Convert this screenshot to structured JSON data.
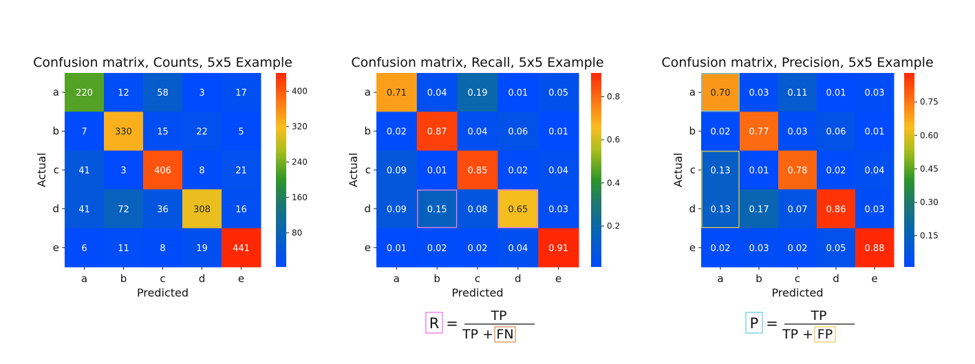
{
  "chart_data": [
    {
      "type": "heatmap",
      "title": "Confusion matrix, Counts, 5x5 Example",
      "xlabel": "Predicted",
      "ylabel": "Actual",
      "x_categories": [
        "a",
        "b",
        "c",
        "d",
        "e"
      ],
      "y_categories": [
        "a",
        "b",
        "c",
        "d",
        "e"
      ],
      "values": [
        [
          220,
          12,
          58,
          3,
          17
        ],
        [
          7,
          330,
          15,
          22,
          5
        ],
        [
          41,
          3,
          406,
          8,
          21
        ],
        [
          41,
          72,
          36,
          308,
          16
        ],
        [
          6,
          11,
          8,
          19,
          441
        ]
      ],
      "labels": [
        [
          "220",
          "12",
          "58",
          "3",
          "17"
        ],
        [
          "7",
          "330",
          "15",
          "22",
          "5"
        ],
        [
          "41",
          "3",
          "406",
          "8",
          "21"
        ],
        [
          "41",
          "72",
          "36",
          "308",
          "16"
        ],
        [
          "6",
          "11",
          "8",
          "19",
          "441"
        ]
      ],
      "colorbar": {
        "min": 3,
        "max": 441,
        "ticks": [
          80,
          160,
          240,
          320,
          400
        ],
        "tick_labels": [
          "80",
          "160",
          "240",
          "320",
          "400"
        ]
      },
      "highlights": []
    },
    {
      "type": "heatmap",
      "title": "Confusion matrix, Recall, 5x5 Example",
      "xlabel": "Predicted",
      "ylabel": "Actual",
      "x_categories": [
        "a",
        "b",
        "c",
        "d",
        "e"
      ],
      "y_categories": [
        "a",
        "b",
        "c",
        "d",
        "e"
      ],
      "values": [
        [
          0.71,
          0.04,
          0.19,
          0.01,
          0.05
        ],
        [
          0.02,
          0.87,
          0.04,
          0.06,
          0.01
        ],
        [
          0.09,
          0.01,
          0.85,
          0.02,
          0.04
        ],
        [
          0.09,
          0.15,
          0.08,
          0.65,
          0.03
        ],
        [
          0.01,
          0.02,
          0.02,
          0.04,
          0.91
        ]
      ],
      "labels": [
        [
          "0.71",
          "0.04",
          "0.19",
          "0.01",
          "0.05"
        ],
        [
          "0.02",
          "0.87",
          "0.04",
          "0.06",
          "0.01"
        ],
        [
          "0.09",
          "0.01",
          "0.85",
          "0.02",
          "0.04"
        ],
        [
          "0.09",
          "0.15",
          "0.08",
          "0.65",
          "0.03"
        ],
        [
          "0.01",
          "0.02",
          "0.02",
          "0.04",
          "0.91"
        ]
      ],
      "colorbar": {
        "min": 0.01,
        "max": 0.91,
        "ticks": [
          0.2,
          0.4,
          0.6,
          0.8
        ],
        "tick_labels": [
          "0.2",
          "0.4",
          "0.6",
          "0.8"
        ]
      },
      "highlights": [
        {
          "row": 3,
          "col": 1,
          "rows": 1,
          "cols": 1,
          "color": "#ee82ee"
        },
        {
          "row": 3,
          "col": 3,
          "rows": 1,
          "cols": 1,
          "color": "#ee82ee"
        }
      ],
      "formula": {
        "lhs": "R",
        "eq": "=",
        "numerator": "TP",
        "denominator_prefix": "TP + ",
        "boxed_term": "FN",
        "lhs_box_color": "#ee66ee",
        "term_box_color": "#d4874a"
      }
    },
    {
      "type": "heatmap",
      "title": "Confusion matrix, Precision, 5x5 Example",
      "xlabel": "Predicted",
      "ylabel": "Actual",
      "x_categories": [
        "a",
        "b",
        "c",
        "d",
        "e"
      ],
      "y_categories": [
        "a",
        "b",
        "c",
        "d",
        "e"
      ],
      "values": [
        [
          0.7,
          0.03,
          0.11,
          0.01,
          0.03
        ],
        [
          0.02,
          0.77,
          0.03,
          0.06,
          0.01
        ],
        [
          0.13,
          0.01,
          0.78,
          0.02,
          0.04
        ],
        [
          0.13,
          0.17,
          0.07,
          0.86,
          0.03
        ],
        [
          0.02,
          0.03,
          0.02,
          0.05,
          0.88
        ]
      ],
      "labels": [
        [
          "0.70",
          "0.03",
          "0.11",
          "0.01",
          "0.03"
        ],
        [
          "0.02",
          "0.77",
          "0.03",
          "0.06",
          "0.01"
        ],
        [
          "0.13",
          "0.01",
          "0.78",
          "0.02",
          "0.04"
        ],
        [
          "0.13",
          "0.17",
          "0.07",
          "0.86",
          "0.03"
        ],
        [
          "0.02",
          "0.03",
          "0.02",
          "0.05",
          "0.88"
        ]
      ],
      "colorbar": {
        "min": 0.01,
        "max": 0.88,
        "ticks": [
          0.15,
          0.3,
          0.45,
          0.6,
          0.75
        ],
        "tick_labels": [
          "0.15",
          "0.30",
          "0.45",
          "0.60",
          "0.75"
        ]
      },
      "highlights": [
        {
          "row": 0,
          "col": 0,
          "rows": 1,
          "cols": 1,
          "color": "#5bc8e8"
        },
        {
          "row": 2,
          "col": 0,
          "rows": 2,
          "cols": 1,
          "color": "#e8c84a"
        }
      ],
      "formula": {
        "lhs": "P",
        "eq": "=",
        "numerator": "TP",
        "denominator_prefix": "TP + ",
        "boxed_term": "FP",
        "lhs_box_color": "#5bc8e8",
        "term_box_color": "#e8c84a"
      }
    }
  ]
}
